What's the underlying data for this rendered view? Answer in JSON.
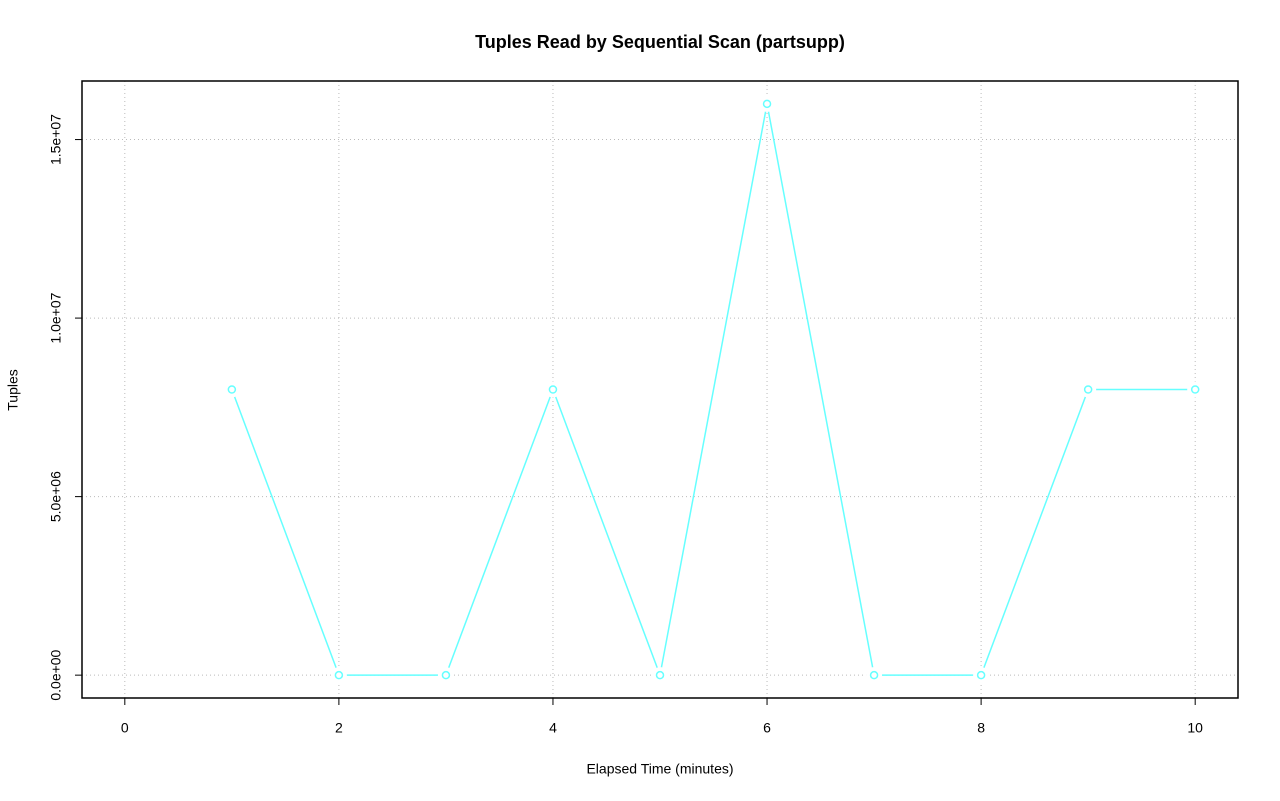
{
  "chart_data": {
    "type": "line",
    "title": "Tuples Read by Sequential Scan (partsupp)",
    "x_label": "Elapsed Time (minutes)",
    "y_label": "Tuples",
    "x": [
      1,
      2,
      3,
      4,
      5,
      6,
      7,
      8,
      9,
      10
    ],
    "series": [
      {
        "color": "#66ffff",
        "values": [
          8000000,
          0,
          0,
          8000000,
          0,
          16000000,
          0,
          0,
          8000000,
          8000000
        ]
      }
    ],
    "xlim": [
      -0.4,
      10.4
    ],
    "xticks": [
      0,
      2,
      4,
      6,
      8,
      10
    ],
    "ylim": [
      -640000,
      16640000
    ],
    "yticks": [
      {
        "value": 0,
        "label": "0.0e+00"
      },
      {
        "value": 5000000,
        "label": "5.0e+06"
      },
      {
        "value": 10000000,
        "label": "1.0e+07"
      },
      {
        "value": 15000000,
        "label": "1.5e+07"
      }
    ],
    "grid": true
  }
}
